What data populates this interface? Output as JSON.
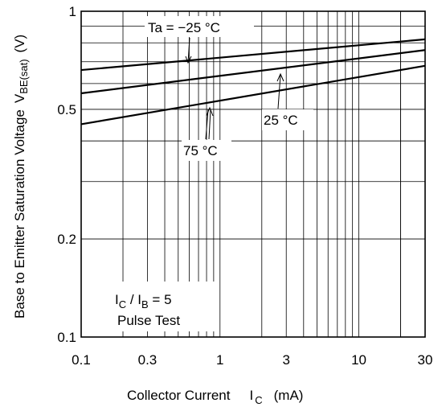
{
  "chart_data": {
    "type": "line",
    "x_scale": "log",
    "y_scale": "log",
    "xlim": [
      0.1,
      30
    ],
    "ylim": [
      0.1,
      1
    ],
    "x_ticks": [
      0.1,
      0.3,
      1,
      3,
      10,
      30
    ],
    "x_tick_labels": [
      "0.1",
      "0.3",
      "1",
      "3",
      "10",
      "30"
    ],
    "y_ticks": [
      0.1,
      0.2,
      0.5,
      1
    ],
    "y_tick_labels": [
      "0.1",
      "0.2",
      "0.5",
      "1"
    ],
    "grid": true,
    "xlabel": {
      "main": "Collector Current",
      "symbol": "I",
      "sub": "C",
      "unit": "(mA)"
    },
    "ylabel": {
      "main": "Base to Emitter Saturation Voltage",
      "symbol": "V",
      "sub": "BE(sat)",
      "unit": "(V)"
    },
    "series": [
      {
        "name": "Ta = −25 °C",
        "x": [
          0.1,
          30
        ],
        "y": [
          0.66,
          0.82
        ]
      },
      {
        "name": "25 °C",
        "x": [
          0.1,
          30
        ],
        "y": [
          0.56,
          0.76
        ]
      },
      {
        "name": "75 °C",
        "x": [
          0.1,
          30
        ],
        "y": [
          0.45,
          0.68
        ]
      }
    ],
    "annotations": {
      "ta_label": "Ta = −25 °C",
      "t25_label": "25 °C",
      "t75_label": "75 °C",
      "cond_ic": "I",
      "cond_ic_sub": "C",
      "cond_sep": " / I",
      "cond_ib_sub": "B",
      "cond_ratio": " = 5",
      "cond_pulse": "Pulse Test"
    }
  }
}
